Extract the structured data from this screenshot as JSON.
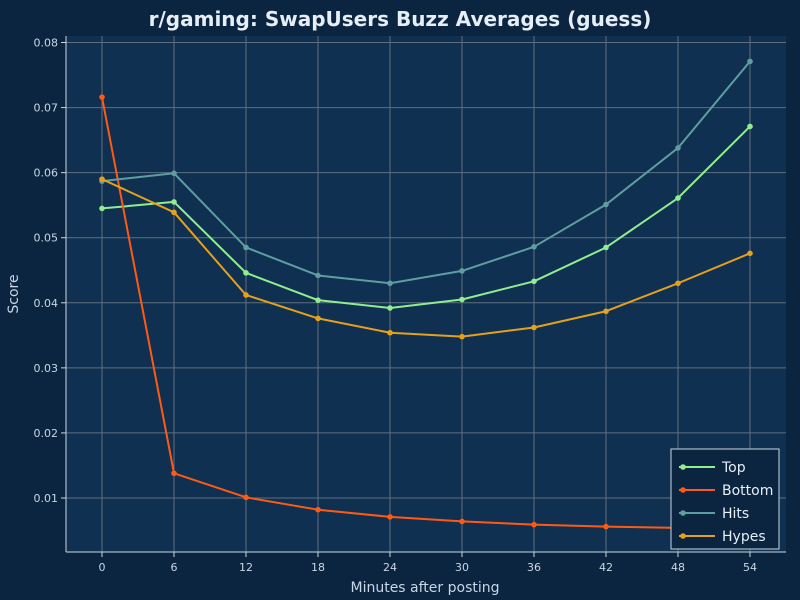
{
  "chart_data": {
    "type": "line",
    "title": "r/gaming: SwapUsers Buzz Averages (guess)",
    "xlabel": "Minutes after posting",
    "ylabel": "Score",
    "x": [
      0,
      6,
      12,
      18,
      24,
      30,
      36,
      42,
      48,
      54
    ],
    "x_ticks": [
      0,
      6,
      12,
      18,
      24,
      30,
      36,
      42,
      48,
      54
    ],
    "xlim": [
      -3,
      57
    ],
    "ylim": [
      0.0017,
      0.081
    ],
    "y_ticks": [
      0.01,
      0.02,
      0.03,
      0.04,
      0.05,
      0.06,
      0.07,
      0.08
    ],
    "y_tick_labels": [
      "0.01",
      "0.02",
      "0.03",
      "0.04",
      "0.05",
      "0.06",
      "0.07",
      "0.08"
    ],
    "grid": true,
    "legend_position": "bottom-right",
    "colors": {
      "background": "#0b2540",
      "plot_background": "#0f3050",
      "grid": "#5f6f7e",
      "axis": "#c8d6e5"
    },
    "series": [
      {
        "name": "Top",
        "color": "#90ee90",
        "values": [
          0.0545,
          0.0555,
          0.0446,
          0.0404,
          0.0392,
          0.0405,
          0.0433,
          0.0485,
          0.0561,
          0.0671
        ]
      },
      {
        "name": "Bottom",
        "color": "#ff5a14",
        "values": [
          0.0716,
          0.0138,
          0.0101,
          0.0082,
          0.0071,
          0.0064,
          0.0059,
          0.0056,
          0.0054,
          0.0053
        ]
      },
      {
        "name": "Hits",
        "color": "#5f9ea0",
        "values": [
          0.0587,
          0.0599,
          0.0485,
          0.0442,
          0.043,
          0.0449,
          0.0486,
          0.0551,
          0.0638,
          0.0771
        ]
      },
      {
        "name": "Hypes",
        "color": "#e5a11c",
        "values": [
          0.059,
          0.0539,
          0.0412,
          0.0376,
          0.0354,
          0.0348,
          0.0362,
          0.0387,
          0.043,
          0.0476
        ]
      }
    ]
  }
}
